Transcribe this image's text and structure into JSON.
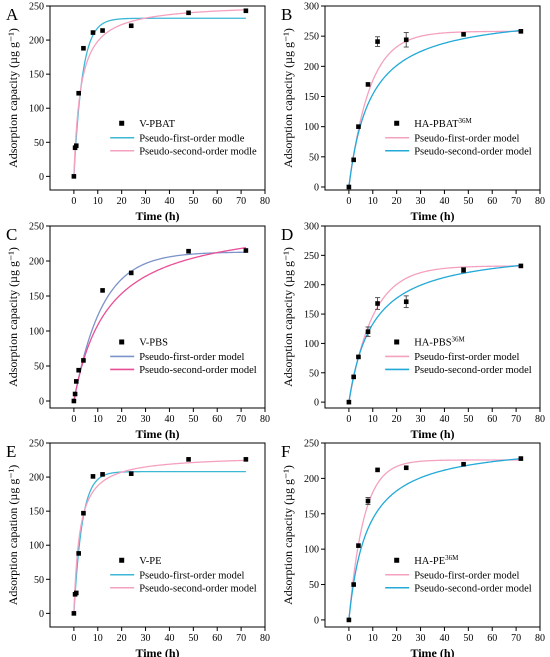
{
  "chart_data": [
    {
      "letter": "A",
      "type": "scatter",
      "xlabel": "Time (h)",
      "ylabel": "Adsorption capacity (µg g⁻¹)",
      "xlim": [
        -10,
        80
      ],
      "ylim": [
        -20,
        250
      ],
      "xticks": [
        0,
        10,
        20,
        30,
        40,
        50,
        60,
        70,
        80
      ],
      "yticks": [
        0,
        50,
        100,
        150,
        200,
        250
      ],
      "points": [
        [
          0,
          0
        ],
        [
          0.5,
          42
        ],
        [
          1,
          45
        ],
        [
          2,
          122
        ],
        [
          4,
          188
        ],
        [
          8,
          211
        ],
        [
          12,
          214
        ],
        [
          24,
          221
        ],
        [
          48,
          240
        ],
        [
          72,
          243
        ]
      ],
      "error_bars": [],
      "legend": {
        "position": "center-right",
        "scatter": "V-PBAT",
        "scatter_sup": "",
        "line1": "Pseudo-first-order modle",
        "line2": "Pseudo-second-order modle"
      },
      "fit_order": [
        "first",
        "second"
      ],
      "first": {
        "qe": 232,
        "k": 0.28,
        "color": "#3cb7d6"
      },
      "second": {
        "qe": 254,
        "k": 0.0014,
        "color": "#f4a1c0"
      }
    },
    {
      "letter": "B",
      "type": "scatter",
      "xlabel": "Time (h)",
      "ylabel": "Adsorption capacity (µg g⁻¹)",
      "xlim": [
        -10,
        80
      ],
      "ylim": [
        -5,
        300
      ],
      "xticks": [
        0,
        10,
        20,
        30,
        40,
        50,
        60,
        70,
        80
      ],
      "yticks": [
        0,
        50,
        100,
        150,
        200,
        250,
        300
      ],
      "points": [
        [
          0,
          0
        ],
        [
          2,
          45
        ],
        [
          4,
          100
        ],
        [
          8,
          170
        ],
        [
          12,
          241
        ],
        [
          24,
          244
        ],
        [
          48,
          253
        ],
        [
          72,
          258
        ]
      ],
      "error_bars": [
        [
          12,
          8
        ],
        [
          24,
          12
        ]
      ],
      "legend": {
        "position": "center-right",
        "scatter": "HA-PBAT",
        "scatter_sup": "36M",
        "line1": "Pseudo-first-order model",
        "line2": "Pseudo-second-order model"
      },
      "fit_order": [
        "first",
        "second"
      ],
      "first": {
        "qe": 258,
        "k": 0.115,
        "color": "#f4a1c0"
      },
      "second": {
        "qe": 292,
        "k": 0.00038,
        "color": "#22a9d8"
      }
    },
    {
      "letter": "C",
      "type": "scatter",
      "xlabel": "Time (h)",
      "ylabel": "Adsorption capacity (µg g⁻¹)",
      "xlim": [
        -10,
        80
      ],
      "ylim": [
        -10,
        250
      ],
      "xticks": [
        0,
        10,
        20,
        30,
        40,
        50,
        60,
        70,
        80
      ],
      "yticks": [
        0,
        50,
        100,
        150,
        200,
        250
      ],
      "points": [
        [
          0,
          0
        ],
        [
          0.5,
          10
        ],
        [
          1,
          28
        ],
        [
          2,
          44
        ],
        [
          4,
          58
        ],
        [
          12,
          158
        ],
        [
          24,
          183
        ],
        [
          48,
          214
        ],
        [
          72,
          215
        ]
      ],
      "error_bars": [],
      "legend": {
        "position": "center-right",
        "scatter": "V-PBS",
        "scatter_sup": "",
        "line1": "Pseudo-first-order model",
        "line2": "Pseudo-second-order model"
      },
      "fit_order": [
        "first",
        "second"
      ],
      "first": {
        "qe": 213,
        "k": 0.085,
        "color": "#7b93c9"
      },
      "second": {
        "qe": 262,
        "k": 0.00027,
        "color": "#e84f97"
      }
    },
    {
      "letter": "D",
      "type": "scatter",
      "xlabel": "Time (h)",
      "ylabel": "Adsorption capacity (µg g⁻¹)",
      "xlim": [
        -10,
        80
      ],
      "ylim": [
        -10,
        300
      ],
      "xticks": [
        0,
        10,
        20,
        30,
        40,
        50,
        60,
        70,
        80
      ],
      "yticks": [
        0,
        50,
        100,
        150,
        200,
        250,
        300
      ],
      "points": [
        [
          0,
          0
        ],
        [
          2,
          43
        ],
        [
          4,
          77
        ],
        [
          8,
          120
        ],
        [
          12,
          168
        ],
        [
          24,
          171
        ],
        [
          48,
          225
        ],
        [
          72,
          232
        ]
      ],
      "error_bars": [
        [
          8,
          8
        ],
        [
          12,
          10
        ],
        [
          24,
          10
        ],
        [
          48,
          4
        ]
      ],
      "legend": {
        "position": "center-right",
        "scatter": "HA-PBS",
        "scatter_sup": "36M",
        "line1": "Pseudo-first-order model",
        "line2": "Pseudo-second-order model"
      },
      "fit_order": [
        "first",
        "second"
      ],
      "first": {
        "qe": 232,
        "k": 0.1,
        "color": "#f4a1c0"
      },
      "second": {
        "qe": 265,
        "k": 0.00038,
        "color": "#22a9d8"
      }
    },
    {
      "letter": "E",
      "type": "scatter",
      "xlabel": "Time (h)",
      "ylabel": "Adsorption capation (µg g⁻¹)",
      "xlim": [
        -10,
        80
      ],
      "ylim": [
        -20,
        250
      ],
      "xticks": [
        0,
        10,
        20,
        30,
        40,
        50,
        60,
        70,
        80
      ],
      "yticks": [
        0,
        50,
        100,
        150,
        200,
        250
      ],
      "points": [
        [
          0,
          0
        ],
        [
          0.5,
          28
        ],
        [
          1,
          30
        ],
        [
          2,
          88
        ],
        [
          4,
          147
        ],
        [
          8,
          201
        ],
        [
          12,
          204
        ],
        [
          24,
          205
        ],
        [
          48,
          226
        ],
        [
          72,
          226
        ]
      ],
      "error_bars": [],
      "legend": {
        "position": "center-right",
        "scatter": "V-PE",
        "scatter_sup": "",
        "line1": "Pseudo-first-order model",
        "line2": "Pseudo-second-order model"
      },
      "fit_order": [
        "first",
        "second"
      ],
      "first": {
        "qe": 208,
        "k": 0.29,
        "color": "#3cb7d6"
      },
      "second": {
        "qe": 232,
        "k": 0.0018,
        "color": "#f4a1c0"
      }
    },
    {
      "letter": "F",
      "type": "scatter",
      "xlabel": "Time (h)",
      "ylabel": "Adsorption capacity (µg g⁻¹)",
      "xlim": [
        -10,
        80
      ],
      "ylim": [
        -10,
        250
      ],
      "xticks": [
        0,
        10,
        20,
        30,
        40,
        50,
        60,
        70,
        80
      ],
      "yticks": [
        0,
        50,
        100,
        150,
        200,
        250
      ],
      "points": [
        [
          0,
          0
        ],
        [
          2,
          50
        ],
        [
          4,
          105
        ],
        [
          8,
          168
        ],
        [
          12,
          212
        ],
        [
          24,
          215
        ],
        [
          48,
          220
        ],
        [
          72,
          228
        ]
      ],
      "error_bars": [
        [
          8,
          5
        ]
      ],
      "legend": {
        "position": "center-right",
        "scatter": "HA-PE",
        "scatter_sup": "36M",
        "line1": "Pseudo-first-order model",
        "line2": "Pseudo-second-order model"
      },
      "fit_order": [
        "first",
        "second"
      ],
      "first": {
        "qe": 226,
        "k": 0.16,
        "color": "#f4a1c0"
      },
      "second": {
        "qe": 252,
        "k": 0.00052,
        "color": "#22a9d8"
      }
    }
  ]
}
